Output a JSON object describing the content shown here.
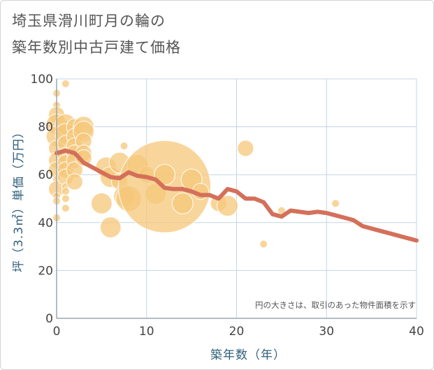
{
  "chart_data": {
    "type": "scatter",
    "title": "埼玉県滑川町月の輪の\n築年数別中古戸建て価格",
    "xlabel": "築年数（年）",
    "ylabel": "坪（3.3㎡）単価（万円）",
    "xlim": [
      0,
      40
    ],
    "ylim": [
      0,
      100
    ],
    "xticks": [
      "0",
      "10",
      "20",
      "30",
      "40"
    ],
    "yticks": [
      "0",
      "20",
      "40",
      "60",
      "80",
      "100"
    ],
    "grid": true,
    "note": "円の大きさは、取引のあった物件面積を示す",
    "colors": {
      "bubble": "#f5c77a",
      "line": "#d4705a",
      "grid": "#c5d5e4",
      "axis": "#9aa5ad"
    },
    "bubbles": [
      {
        "x": 0,
        "y": 94,
        "s": 1
      },
      {
        "x": 0,
        "y": 89,
        "s": 1
      },
      {
        "x": 0,
        "y": 85,
        "s": 2
      },
      {
        "x": 0,
        "y": 81,
        "s": 3
      },
      {
        "x": 0,
        "y": 76,
        "s": 3
      },
      {
        "x": 0,
        "y": 71,
        "s": 2
      },
      {
        "x": 0,
        "y": 66,
        "s": 2
      },
      {
        "x": 0,
        "y": 62,
        "s": 2
      },
      {
        "x": 0,
        "y": 58,
        "s": 1
      },
      {
        "x": 0,
        "y": 54,
        "s": 2
      },
      {
        "x": 0,
        "y": 51,
        "s": 1
      },
      {
        "x": 0,
        "y": 49,
        "s": 1
      },
      {
        "x": 0,
        "y": 42,
        "s": 1
      },
      {
        "x": 1,
        "y": 98,
        "s": 1
      },
      {
        "x": 1,
        "y": 81,
        "s": 3
      },
      {
        "x": 1,
        "y": 77,
        "s": 3
      },
      {
        "x": 1,
        "y": 73,
        "s": 2
      },
      {
        "x": 1,
        "y": 68,
        "s": 2
      },
      {
        "x": 1,
        "y": 65,
        "s": 2
      },
      {
        "x": 1,
        "y": 62,
        "s": 2
      },
      {
        "x": 1,
        "y": 59,
        "s": 2
      },
      {
        "x": 1,
        "y": 55,
        "s": 1
      },
      {
        "x": 1,
        "y": 53,
        "s": 1
      },
      {
        "x": 1,
        "y": 50,
        "s": 1
      },
      {
        "x": 1,
        "y": 46,
        "s": 1
      },
      {
        "x": 2,
        "y": 80,
        "s": 2
      },
      {
        "x": 2,
        "y": 76,
        "s": 2
      },
      {
        "x": 2,
        "y": 72,
        "s": 2
      },
      {
        "x": 2,
        "y": 69,
        "s": 2
      },
      {
        "x": 2,
        "y": 66,
        "s": 2
      },
      {
        "x": 2,
        "y": 62,
        "s": 2
      },
      {
        "x": 2,
        "y": 57,
        "s": 2
      },
      {
        "x": 3,
        "y": 80,
        "s": 3
      },
      {
        "x": 3,
        "y": 78,
        "s": 3
      },
      {
        "x": 3,
        "y": 74,
        "s": 2
      },
      {
        "x": 3,
        "y": 69,
        "s": 2
      },
      {
        "x": 3,
        "y": 67,
        "s": 2
      },
      {
        "x": 5,
        "y": 48,
        "s": 3
      },
      {
        "x": 5.5,
        "y": 63,
        "s": 3
      },
      {
        "x": 6,
        "y": 59,
        "s": 3
      },
      {
        "x": 6,
        "y": 38,
        "s": 3
      },
      {
        "x": 7,
        "y": 65,
        "s": 3
      },
      {
        "x": 7,
        "y": 57,
        "s": 2
      },
      {
        "x": 7.5,
        "y": 51,
        "s": 3
      },
      {
        "x": 7.5,
        "y": 72,
        "s": 1
      },
      {
        "x": 8,
        "y": 50,
        "s": 4
      },
      {
        "x": 9,
        "y": 64,
        "s": 3
      },
      {
        "x": 10,
        "y": 60,
        "s": 2
      },
      {
        "x": 11,
        "y": 52,
        "s": 3
      },
      {
        "x": 12,
        "y": 55,
        "s": 12
      },
      {
        "x": 12,
        "y": 60,
        "s": 3
      },
      {
        "x": 14,
        "y": 48,
        "s": 3
      },
      {
        "x": 15,
        "y": 58,
        "s": 3
      },
      {
        "x": 16,
        "y": 53,
        "s": 2
      },
      {
        "x": 18,
        "y": 48,
        "s": 2
      },
      {
        "x": 19,
        "y": 47,
        "s": 3
      },
      {
        "x": 21,
        "y": 71,
        "s": 2
      },
      {
        "x": 23,
        "y": 31,
        "s": 1
      },
      {
        "x": 25,
        "y": 45,
        "s": 1
      },
      {
        "x": 31,
        "y": 48,
        "s": 1
      }
    ],
    "trend": {
      "x": [
        0,
        1,
        2,
        3,
        4,
        5,
        6,
        7,
        8,
        9,
        10,
        11,
        12,
        13,
        14,
        15,
        16,
        17,
        18,
        19,
        20,
        21,
        22,
        23,
        24,
        25,
        26,
        27,
        28,
        29,
        30,
        31,
        32,
        33,
        34,
        35,
        36,
        37,
        38,
        39,
        40
      ],
      "y": [
        69,
        70,
        69,
        65,
        63,
        61,
        59,
        58.5,
        61,
        59.5,
        59,
        58,
        54.5,
        54,
        54,
        53,
        51.5,
        51.5,
        50,
        54,
        53,
        50,
        50,
        48.5,
        43.5,
        42.5,
        45,
        44.5,
        44,
        44.5,
        44,
        43,
        42,
        41,
        38.5,
        37.5,
        36.5,
        35.5,
        34.5,
        33.5,
        32.5
      ]
    }
  }
}
